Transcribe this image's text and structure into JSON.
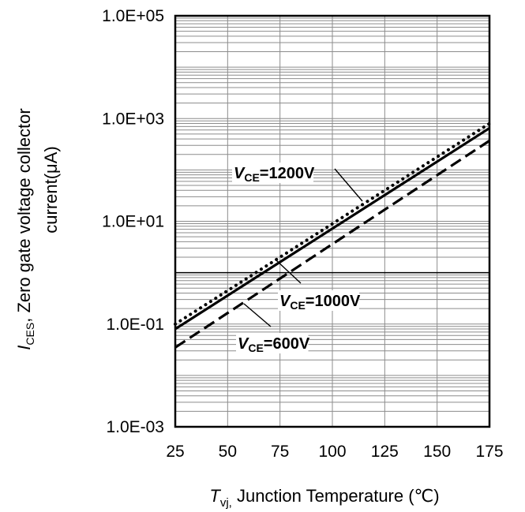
{
  "chart_data": {
    "type": "line",
    "title": "",
    "xlabel": {
      "symbol": "T",
      "subscript": "vj,",
      "text": " Junction Temperature (℃)"
    },
    "ylabel": {
      "symbol": "I",
      "subscript": "CES",
      "line1": ", Zero gate voltage collector",
      "line2": "current(μA)"
    },
    "xlim": [
      25,
      175
    ],
    "ylim": [
      0.001,
      100000
    ],
    "yscale": "log",
    "grid": true,
    "x_ticks": [
      25,
      50,
      75,
      100,
      125,
      150,
      175
    ],
    "x_tick_labels": [
      "25",
      "50",
      "75",
      "100",
      "125",
      "150",
      "175"
    ],
    "y_ticks": [
      0.001,
      0.1,
      10,
      1000,
      100000
    ],
    "y_tick_labels": [
      "1.0E-03",
      "1.0E-01",
      "1.0E+01",
      "1.0E+03",
      "1.0E+05"
    ],
    "reference_line_y": 1,
    "series": [
      {
        "name": "VCE=1200V",
        "style": "dotted",
        "x": [
          25,
          175
        ],
        "y": [
          0.1,
          800
        ]
      },
      {
        "name": "VCE=1000V",
        "style": "solid",
        "x": [
          25,
          175
        ],
        "y": [
          0.08,
          650
        ]
      },
      {
        "name": "VCE=600V",
        "style": "dashed",
        "x": [
          25,
          175
        ],
        "y": [
          0.035,
          370
        ]
      }
    ],
    "annotations": [
      {
        "main": "V",
        "sub": "CE",
        "rest": "=1200V",
        "points_to": "VCE=1200V"
      },
      {
        "main": "V",
        "sub": "CE",
        "rest": "=1000V",
        "points_to": "VCE=1000V"
      },
      {
        "main": "V",
        "sub": "CE",
        "rest": "=600V",
        "points_to": "VCE=600V"
      }
    ]
  }
}
